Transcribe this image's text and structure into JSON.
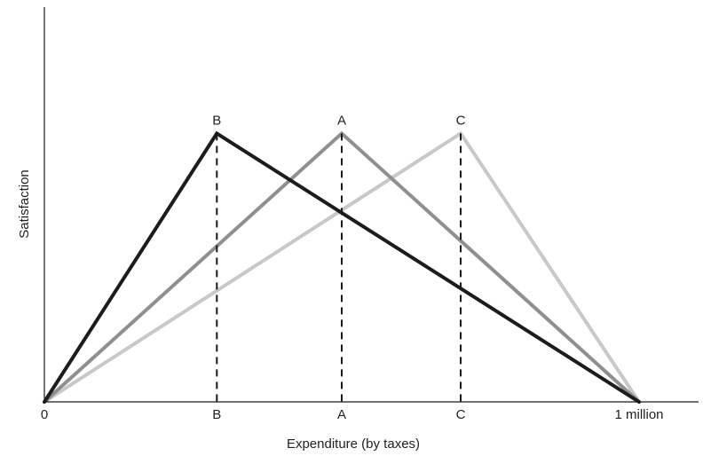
{
  "chart_data": {
    "type": "line",
    "title": "",
    "xlabel": "Expenditure (by taxes)",
    "ylabel": "Satisfaction",
    "x_ticks": [
      {
        "label": "0",
        "value": 0
      },
      {
        "label": "B",
        "value": 0.29
      },
      {
        "label": "A",
        "value": 0.5
      },
      {
        "label": "C",
        "value": 0.7
      },
      {
        "label": "1 million",
        "value": 1.0
      }
    ],
    "xlim": [
      0,
      1.1
    ],
    "ylim": [
      0,
      1.0
    ],
    "grid": false,
    "legend": "none",
    "series": [
      {
        "peak_label": "B",
        "color": "#1c1c1c",
        "points": [
          {
            "x": 0,
            "y": 0
          },
          {
            "x": 0.29,
            "y": 0.68
          },
          {
            "x": 1.0,
            "y": 0
          }
        ]
      },
      {
        "peak_label": "A",
        "color": "#8f8f8f",
        "points": [
          {
            "x": 0,
            "y": 0
          },
          {
            "x": 0.5,
            "y": 0.68
          },
          {
            "x": 1.0,
            "y": 0
          }
        ]
      },
      {
        "peak_label": "C",
        "color": "#c8c8c8",
        "points": [
          {
            "x": 0,
            "y": 0
          },
          {
            "x": 0.7,
            "y": 0.68
          },
          {
            "x": 1.0,
            "y": 0
          }
        ]
      }
    ]
  }
}
